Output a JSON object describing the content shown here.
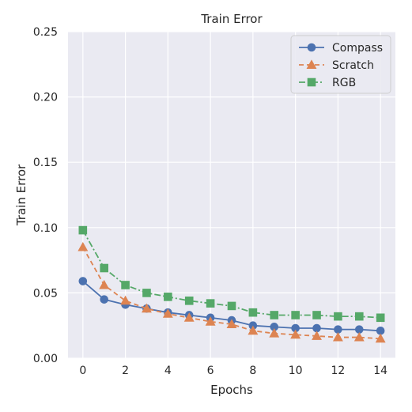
{
  "chart_data": {
    "type": "line",
    "title": "Train Error",
    "xlabel": "Epochs",
    "ylabel": "Train Error",
    "xlim": [
      -0.7,
      14.7
    ],
    "ylim": [
      0.0,
      0.25
    ],
    "xticks": [
      0,
      2,
      4,
      6,
      8,
      10,
      12,
      14
    ],
    "yticks": [
      0.0,
      0.05,
      0.1,
      0.15,
      0.2,
      0.25
    ],
    "xtick_labels": [
      "0",
      "2",
      "4",
      "6",
      "8",
      "10",
      "12",
      "14"
    ],
    "ytick_labels": [
      "0.00",
      "0.05",
      "0.10",
      "0.15",
      "0.20",
      "0.25"
    ],
    "grid": true,
    "legend_position": "top-right",
    "x": [
      0,
      1,
      2,
      3,
      4,
      5,
      6,
      7,
      8,
      9,
      10,
      11,
      12,
      13,
      14
    ],
    "series": [
      {
        "name": "Compass",
        "color": "#4c72b0",
        "marker": "circle",
        "line_style": "solid",
        "values": [
          0.059,
          0.045,
          0.041,
          0.038,
          0.035,
          0.033,
          0.031,
          0.029,
          0.025,
          0.024,
          0.023,
          0.023,
          0.022,
          0.022,
          0.021
        ]
      },
      {
        "name": "Scratch",
        "color": "#dd8452",
        "marker": "triangle",
        "line_style": "dashed",
        "values": [
          0.085,
          0.056,
          0.044,
          0.038,
          0.034,
          0.031,
          0.028,
          0.026,
          0.021,
          0.019,
          0.018,
          0.017,
          0.016,
          0.016,
          0.015
        ]
      },
      {
        "name": "RGB",
        "color": "#55a868",
        "marker": "square",
        "line_style": "dashdot",
        "values": [
          0.098,
          0.069,
          0.056,
          0.05,
          0.047,
          0.044,
          0.042,
          0.04,
          0.035,
          0.033,
          0.033,
          0.033,
          0.032,
          0.032,
          0.031
        ]
      }
    ],
    "plot_background": "#eaeaf2",
    "grid_color": "#ffffff"
  }
}
